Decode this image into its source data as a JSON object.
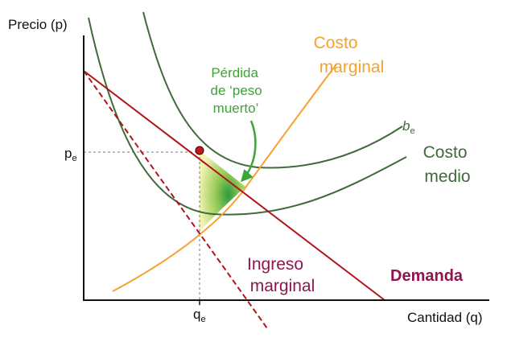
{
  "axes": {
    "y_label": "Precio (p)",
    "x_label": "Cantidad (q)"
  },
  "ticks": {
    "price_main": "p",
    "price_sub": "e",
    "quantity_main": "q",
    "quantity_sub": "e"
  },
  "labels": {
    "costo_marginal_line1": "Costo",
    "costo_marginal_line2": "marginal",
    "dwl_line1": "Pérdida",
    "dwl_line2": "de ‘peso",
    "dwl_line3": "muerto’",
    "be_main": "b",
    "be_sub": "e",
    "costo_medio_line1": "Costo",
    "costo_medio_line2": "medio",
    "ingreso_marginal_line1": "Ingreso",
    "ingreso_marginal_line2": "marginal",
    "demanda": "Demanda"
  },
  "colors": {
    "marginal_cost": "#f7a12f",
    "average_cost": "#3f6b3a",
    "demand": "#b1151b",
    "marginal_revenue": "#b1151b",
    "dwl_text": "#3aa635",
    "label_purple": "#8e1650",
    "equilibrium_point": "#c1171d"
  }
}
